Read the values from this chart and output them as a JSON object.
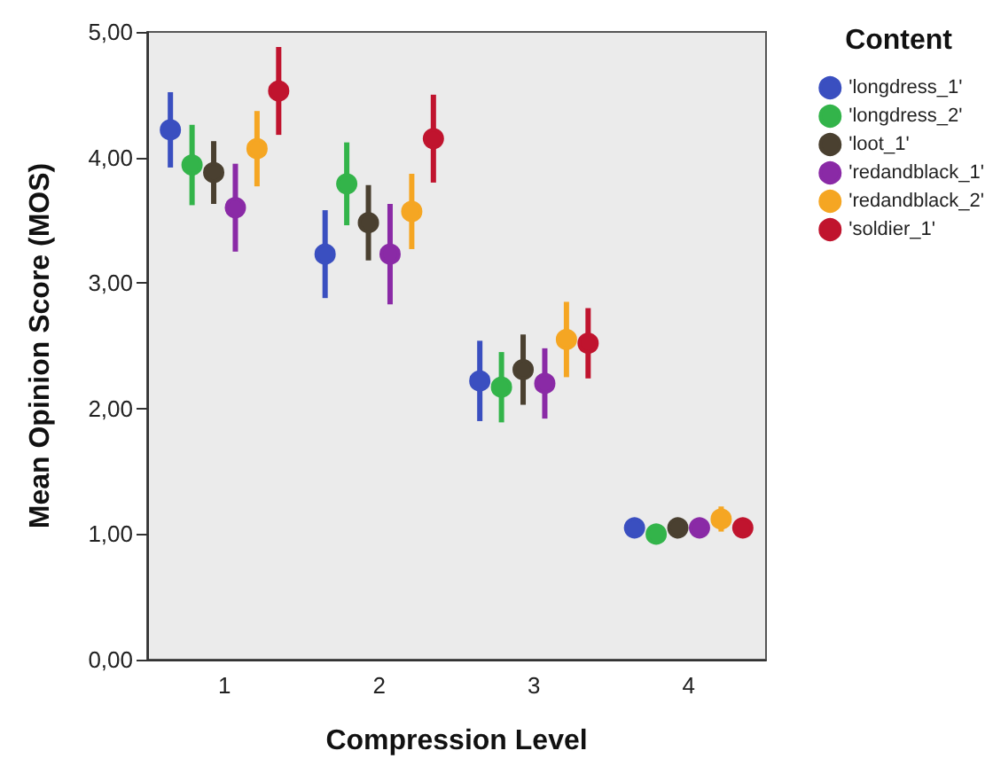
{
  "chart_data": {
    "type": "scatter",
    "xlabel": "Compression Level",
    "ylabel": "Mean Opinion Score (MOS)",
    "legend_title": "Content",
    "categories": [
      "1",
      "2",
      "3",
      "4"
    ],
    "series": [
      {
        "name": "'longdress_1'",
        "color": "#3a4fc0",
        "values": [
          4.22,
          3.23,
          2.22,
          1.05
        ],
        "errors": [
          0.3,
          0.35,
          0.32,
          0.05
        ]
      },
      {
        "name": "'longdress_2'",
        "color": "#33b44a",
        "values": [
          3.94,
          3.79,
          2.17,
          1.0
        ],
        "errors": [
          0.32,
          0.33,
          0.28,
          0.04
        ]
      },
      {
        "name": "'loot_1'",
        "color": "#4a4030",
        "values": [
          3.88,
          3.48,
          2.31,
          1.05
        ],
        "errors": [
          0.25,
          0.3,
          0.28,
          0.05
        ]
      },
      {
        "name": "'redandblack_1'",
        "color": "#8a2aa6",
        "values": [
          3.6,
          3.23,
          2.2,
          1.05
        ],
        "errors": [
          0.35,
          0.4,
          0.28,
          0.05
        ]
      },
      {
        "name": "'redandblack_2'",
        "color": "#f5a623",
        "values": [
          4.07,
          3.57,
          2.55,
          1.12
        ],
        "errors": [
          0.3,
          0.3,
          0.3,
          0.1
        ]
      },
      {
        "name": "'soldier_1'",
        "color": "#c0142e",
        "values": [
          4.53,
          4.15,
          2.52,
          1.05
        ],
        "errors": [
          0.35,
          0.35,
          0.28,
          0.05
        ]
      }
    ],
    "ylim": [
      0,
      5
    ],
    "yticks": [
      {
        "value": 0,
        "label": "0,00"
      },
      {
        "value": 1,
        "label": "1,00"
      },
      {
        "value": 2,
        "label": "2,00"
      },
      {
        "value": 3,
        "label": "3,00"
      },
      {
        "value": 4,
        "label": "4,00"
      },
      {
        "value": 5,
        "label": "5,00"
      }
    ],
    "legend": "right",
    "marker": "circle",
    "grid": false
  }
}
